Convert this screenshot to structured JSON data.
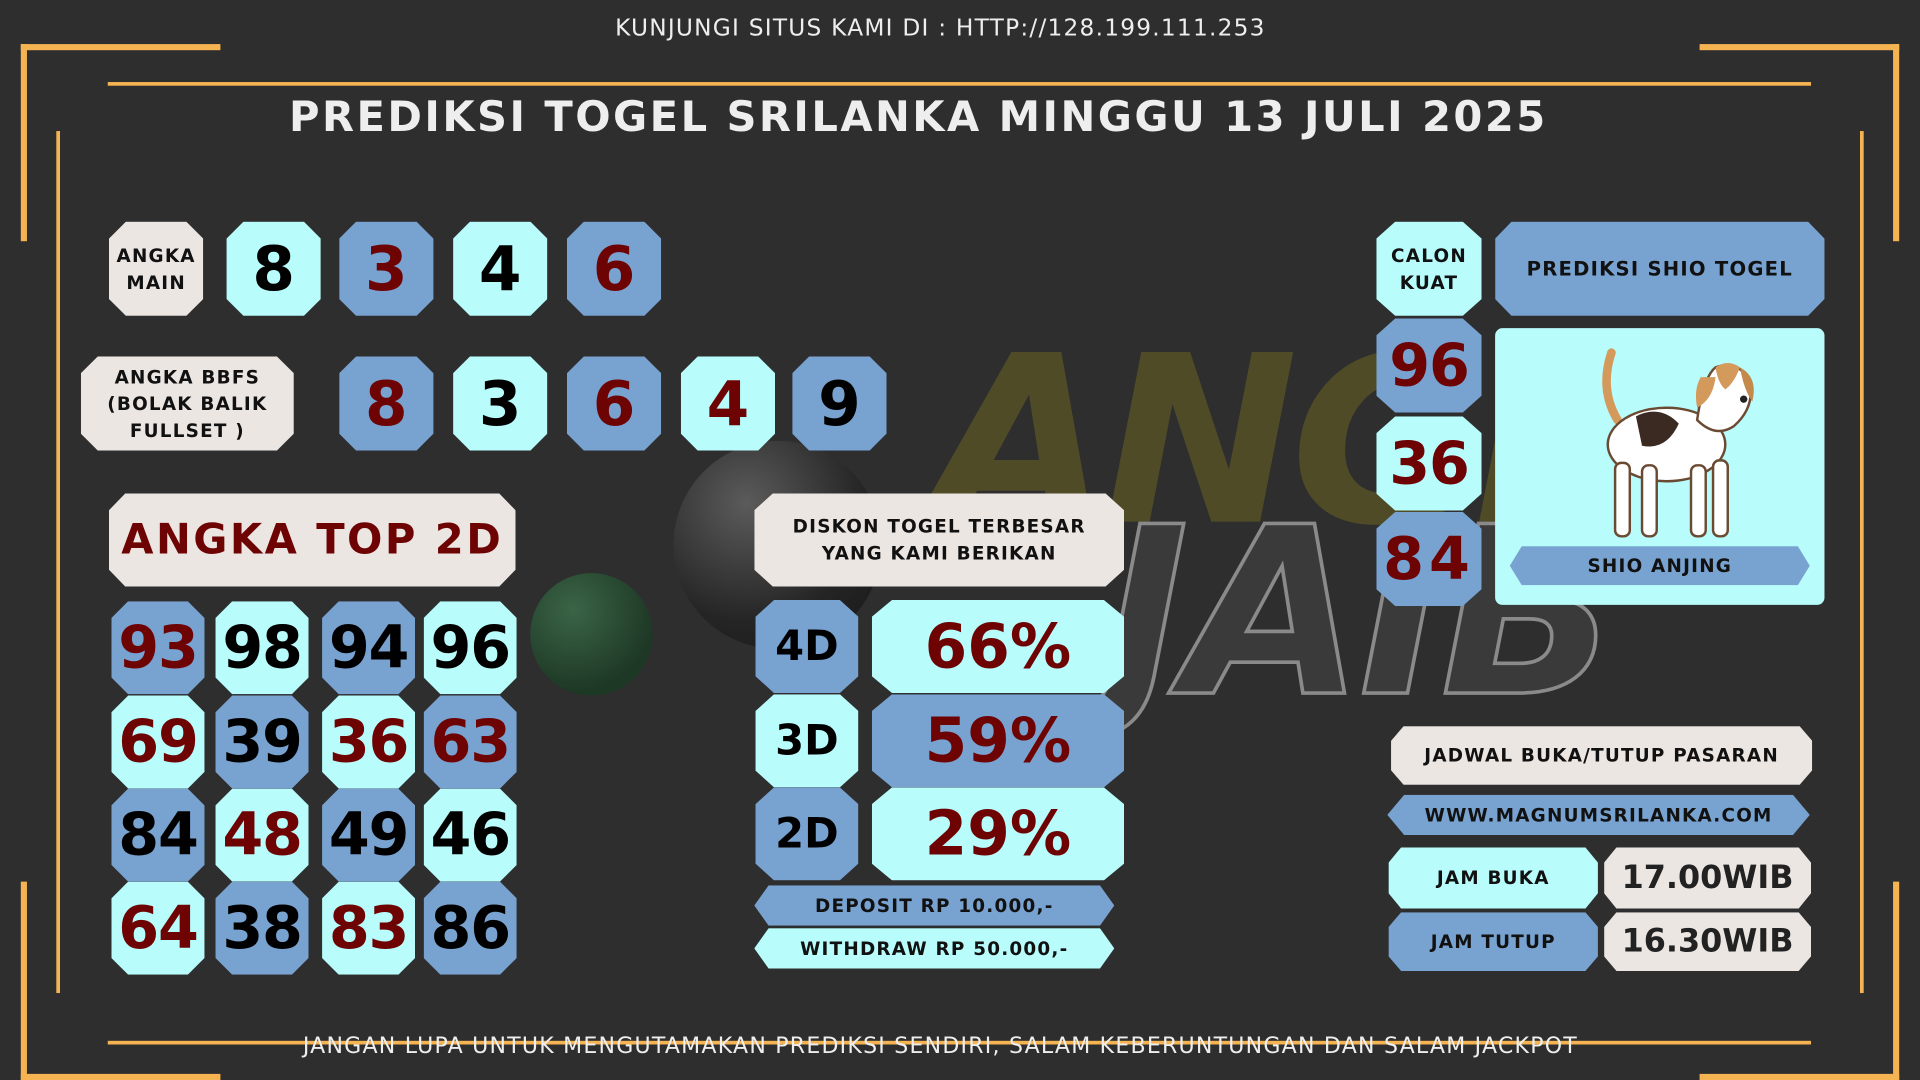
{
  "header": {
    "visit_text": "KUNJUNGI SITUS KAMI DI : HTTP://128.199.111.253",
    "title": "PREDIKSI TOGEL SRILANKA MINGGU 13 JULI 2025"
  },
  "watermark": {
    "line1": "ANGKA",
    "line2": "JAIB"
  },
  "angka_main": {
    "label": "ANGKA MAIN",
    "digits": [
      "8",
      "3",
      "4",
      "6"
    ]
  },
  "bbfs": {
    "label": "ANGKA BBFS (BOLAK BALIK FULLSET )",
    "digits": [
      "8",
      "3",
      "6",
      "4",
      "9"
    ]
  },
  "top2d": {
    "label": "ANGKA TOP 2D",
    "rows": [
      [
        "93",
        "98",
        "94",
        "96"
      ],
      [
        "69",
        "39",
        "36",
        "63"
      ],
      [
        "84",
        "48",
        "49",
        "46"
      ],
      [
        "64",
        "38",
        "83",
        "86"
      ]
    ]
  },
  "diskon": {
    "label": "DISKON TOGEL TERBESAR YANG KAMI BERIKAN",
    "rows": [
      {
        "type": "4D",
        "value": "66%"
      },
      {
        "type": "3D",
        "value": "59%"
      },
      {
        "type": "2D",
        "value": "29%"
      }
    ],
    "deposit": "DEPOSIT RP 10.000,-",
    "withdraw": "WITHDRAW RP 50.000,-"
  },
  "calon_kuat": {
    "label": "CALON KUAT",
    "numbers": [
      "96",
      "36",
      "84"
    ]
  },
  "shio": {
    "header": "PREDIKSI SHIO TOGEL",
    "name": "SHIO ANJING",
    "icon": "beagle-dog-illustration"
  },
  "jadwal": {
    "label": "JADWAL BUKA/TUTUP PASARAN",
    "website": "WWW.MAGNUMSRILANKA.COM",
    "buka_label": "JAM BUKA",
    "buka_value": "17.00WIB",
    "tutup_label": "JAM TUTUP",
    "tutup_value": "16.30WIB"
  },
  "footer": {
    "text": "JANGAN LUPA UNTUK MENGUTAMAKAN PREDIKSI SENDIRI, SALAM KEBERUNTUNGAN DAN SALAM JACKPOT"
  },
  "colors": {
    "background": "#2e2e2e",
    "frame": "#f5b451",
    "cyan": "#b8fcfc",
    "blue": "#78a2d0",
    "offwhite": "#ece6e3",
    "dark_red": "#6e0303"
  }
}
